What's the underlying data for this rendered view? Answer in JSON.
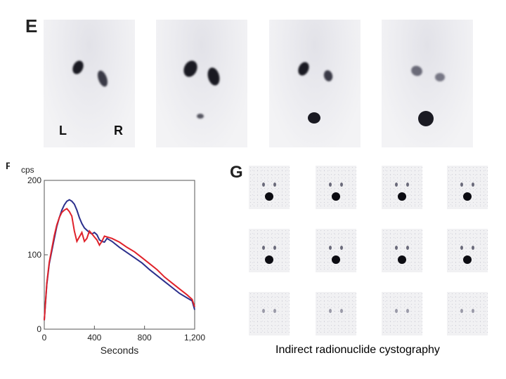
{
  "panels": {
    "top_letter": "E",
    "bottom_left_letter": "F",
    "bottom_right_letter": "G"
  },
  "scan_labels": {
    "left": "L",
    "right": "R"
  },
  "caption": "Indirect radionuclide cystography",
  "chart_data": {
    "type": "line",
    "title": "",
    "xlabel": "Seconds",
    "ylabel": "cps",
    "xlim": [
      0,
      1200
    ],
    "ylim": [
      0,
      200
    ],
    "x_ticks": [
      "0",
      "400",
      "800",
      "1,200"
    ],
    "y_ticks": [
      "0",
      "100",
      "200"
    ],
    "grid": false,
    "series": [
      {
        "color": "#2b2f8c",
        "x": [
          0,
          20,
          40,
          60,
          80,
          100,
          120,
          140,
          160,
          180,
          200,
          220,
          240,
          260,
          280,
          300,
          320,
          340,
          360,
          380,
          400,
          420,
          440,
          460,
          480,
          500,
          540,
          600,
          660,
          720,
          780,
          840,
          900,
          960,
          1020,
          1080,
          1140,
          1180,
          1200
        ],
        "y": [
          12,
          60,
          88,
          105,
          122,
          138,
          150,
          160,
          167,
          172,
          174,
          172,
          168,
          160,
          150,
          142,
          136,
          133,
          130,
          128,
          130,
          127,
          120,
          118,
          117,
          122,
          118,
          110,
          103,
          96,
          89,
          80,
          72,
          64,
          56,
          48,
          42,
          38,
          26
        ]
      },
      {
        "color": "#e0222a",
        "x": [
          0,
          20,
          40,
          60,
          80,
          100,
          120,
          140,
          160,
          180,
          200,
          220,
          240,
          260,
          280,
          300,
          320,
          340,
          360,
          380,
          400,
          420,
          440,
          460,
          480,
          500,
          540,
          600,
          660,
          720,
          780,
          840,
          900,
          960,
          1020,
          1080,
          1140,
          1180,
          1200
        ],
        "y": [
          12,
          62,
          90,
          108,
          126,
          140,
          150,
          157,
          160,
          162,
          158,
          152,
          132,
          118,
          124,
          130,
          118,
          122,
          132,
          128,
          124,
          120,
          113,
          118,
          125,
          124,
          122,
          117,
          110,
          104,
          96,
          88,
          80,
          70,
          62,
          54,
          46,
          40,
          30
        ]
      }
    ]
  }
}
